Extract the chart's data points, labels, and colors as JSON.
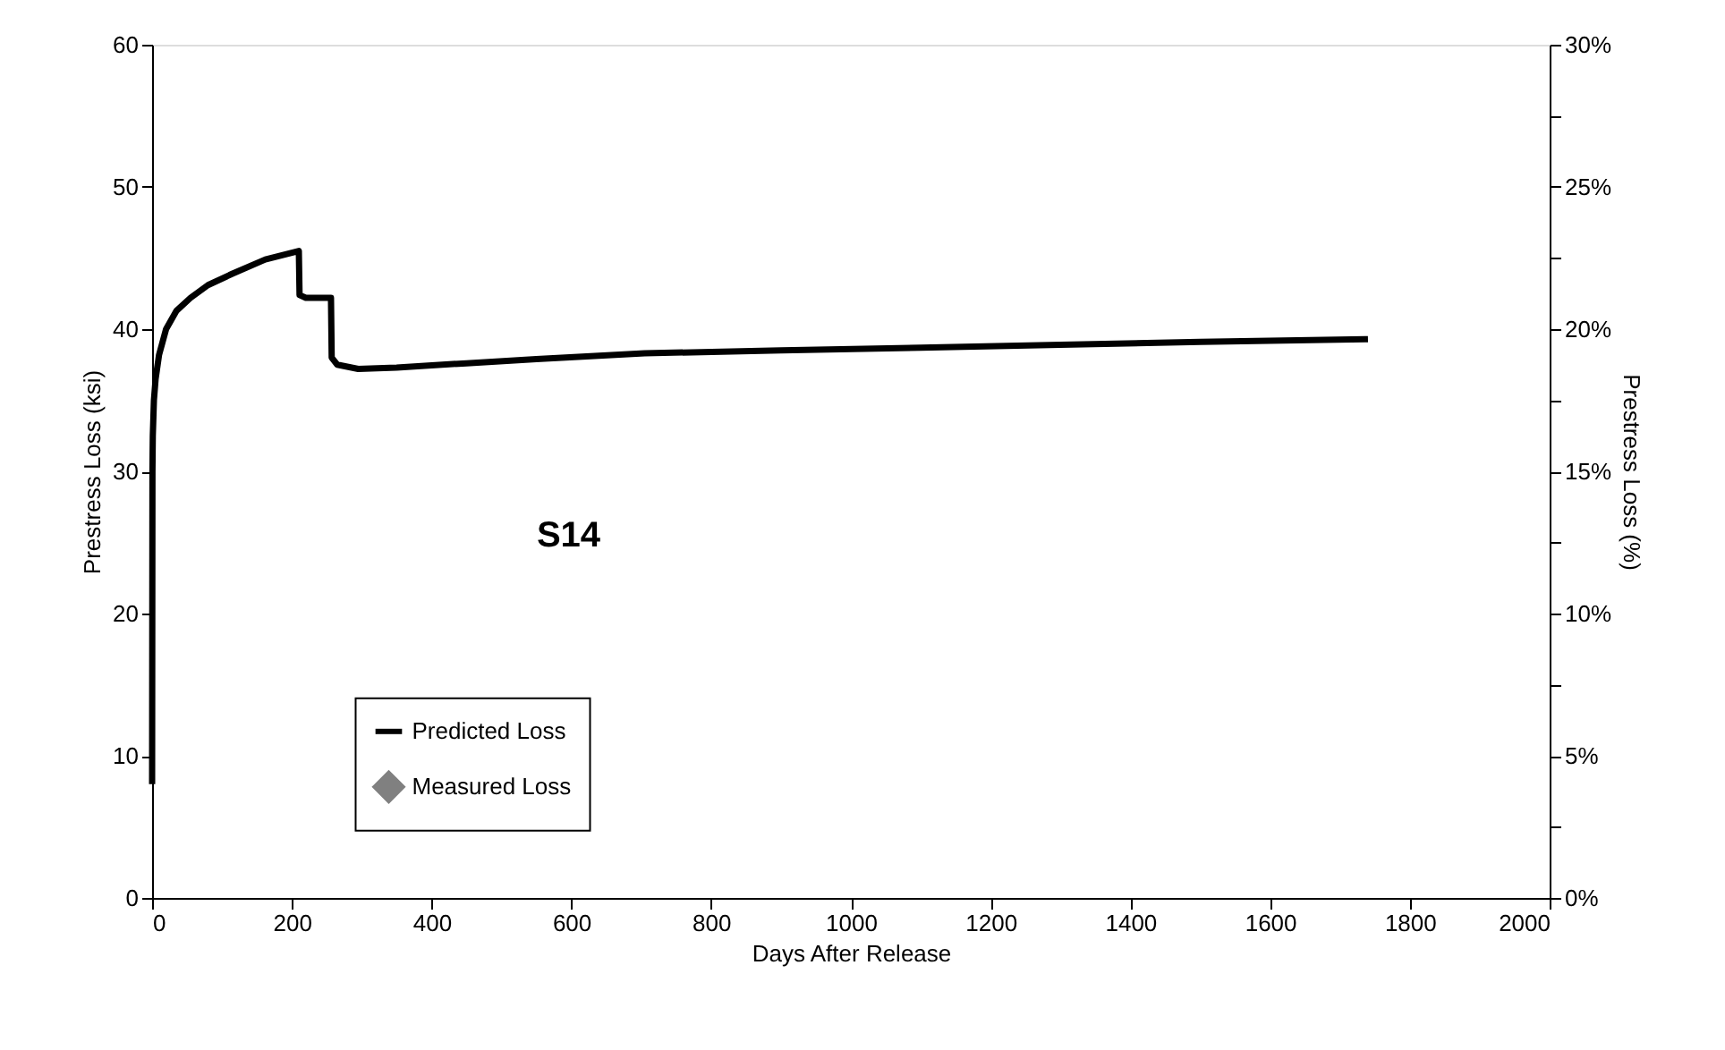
{
  "chart_data": {
    "type": "line",
    "xlabel": "Days After Release",
    "ylabel": "Prestress Loss (ksi)",
    "y2label": "Prestress Loss (%)",
    "annotations": [
      "S14"
    ],
    "series": [
      {
        "name": "Predicted Loss",
        "color": "#000000",
        "x": [
          0,
          0.5,
          1,
          2.6,
          5,
          10,
          20,
          35,
          55,
          80,
          115,
          162,
          210,
          211,
          220,
          256,
          257,
          265,
          295,
          350,
          450,
          550,
          705,
          900,
          1100,
          1300,
          1500,
          1740
        ],
        "values": [
          8,
          30,
          32.5,
          35,
          36.5,
          38.2,
          40,
          41.3,
          42.2,
          43.1,
          43.9,
          44.9,
          45.5,
          42.4,
          42.2,
          42.2,
          38,
          37.5,
          37.2,
          37.3,
          37.6,
          37.9,
          38.3,
          38.5,
          38.7,
          38.9,
          39.1,
          39.3
        ]
      },
      {
        "name": "Measured Loss",
        "color": "#808080",
        "type": "scatter",
        "marker": "diamond"
      }
    ],
    "xlim": [
      0,
      2000
    ],
    "xticks": [
      0,
      200,
      400,
      600,
      800,
      1000,
      1200,
      1400,
      1600,
      1800,
      2000
    ],
    "ylim": [
      0,
      60
    ],
    "yticks": [
      0,
      {
        "value": 5,
        "label": null
      },
      10,
      {
        "value": 15,
        "label": null
      },
      20,
      {
        "value": 25,
        "label": null
      },
      30,
      {
        "value": 35,
        "label": null
      },
      40,
      {
        "value": 45,
        "label": null
      },
      50,
      {
        "value": 55,
        "label": null
      },
      60
    ],
    "y2lim": [
      0,
      30
    ],
    "y2ticks": [
      {
        "value": 0,
        "label": "0%"
      },
      {
        "value": 2.5,
        "label": null
      },
      {
        "value": 5,
        "label": "5%"
      },
      {
        "value": 7.5,
        "label": null
      },
      {
        "value": 10,
        "label": "10%"
      },
      {
        "value": 12.5,
        "label": null
      },
      {
        "value": 15,
        "label": "15%"
      },
      {
        "value": 17.5,
        "label": null
      },
      {
        "value": 20,
        "label": "20%"
      },
      {
        "value": 22.5,
        "label": null
      },
      {
        "value": 25,
        "label": "25%"
      },
      {
        "value": 27.5,
        "label": null
      },
      {
        "value": 30,
        "label": "30%"
      }
    ],
    "grid": false,
    "legend": "bottom left"
  }
}
